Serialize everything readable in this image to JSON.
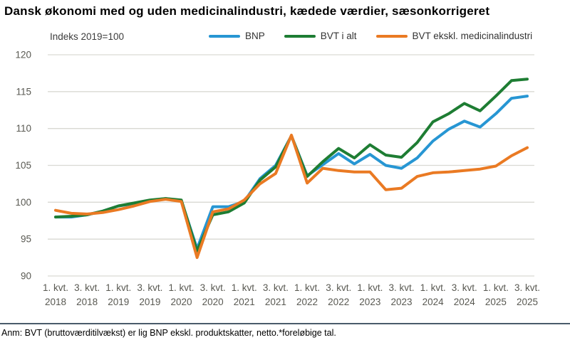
{
  "title": "Dansk økonomi med og uden medicinalindustri, kædede værdier, sæsonkorrigeret",
  "index_note": "Indeks 2019=100",
  "legend": [
    {
      "label": "BNP",
      "color": "#2796d3"
    },
    {
      "label": "BVT i alt",
      "color": "#1e7d33"
    },
    {
      "label": "BVT ekskl. medicinalindustri",
      "color": "#ea7a23"
    }
  ],
  "footnote": "Anm: BVT (bruttoværditilvækst) er lig BNP ekskl. produktskatter, netto.*foreløbige tal.",
  "colors": {
    "gridline": "#d9d9d3",
    "tick_text": "#595952",
    "divider": "#4a5b6b"
  },
  "chart_data": {
    "type": "line",
    "title": "Dansk økonomi med og uden medicinalindustri, kædede værdier, sæsonkorrigeret",
    "subtitle": "Indeks 2019=100",
    "xlabel": "",
    "ylabel": "",
    "ylim": [
      90,
      120
    ],
    "yticks": [
      90,
      95,
      100,
      105,
      110,
      115,
      120
    ],
    "grid": true,
    "legend_position": "top",
    "x_tick_every": 2,
    "categories": [
      "1. kvt. 2018",
      "2. kvt. 2018",
      "3. kvt. 2018",
      "4. kvt. 2018",
      "1. kvt. 2019",
      "2. kvt. 2019",
      "3. kvt. 2019",
      "4. kvt. 2019",
      "1. kvt. 2020",
      "2. kvt. 2020",
      "3. kvt. 2020",
      "4. kvt. 2020",
      "1. kvt. 2021",
      "2. kvt. 2021",
      "3. kvt. 2021",
      "4. kvt. 2021",
      "1. kvt. 2022",
      "2. kvt. 2022",
      "3. kvt. 2022",
      "4. kvt. 2022",
      "1. kvt. 2023",
      "2. kvt. 2023",
      "3. kvt. 2023",
      "4. kvt. 2023",
      "1. kvt. 2024",
      "2. kvt. 2024",
      "3. kvt. 2024",
      "4. kvt. 2024",
      "1. kvt. 2025",
      "2. kvt. 2025",
      "3. kvt. 2025"
    ],
    "series": [
      {
        "name": "BNP",
        "color": "#2796d3",
        "values": [
          98.0,
          98.0,
          98.3,
          98.8,
          99.5,
          99.8,
          100.2,
          100.5,
          100.2,
          93.7,
          99.4,
          99.4,
          100.1,
          103.2,
          105.0,
          109.0,
          103.6,
          105.1,
          106.6,
          105.2,
          106.5,
          105.0,
          104.6,
          106.0,
          108.3,
          109.9,
          111.0,
          110.2,
          112.0,
          114.1,
          114.4
        ]
      },
      {
        "name": "BVT i alt",
        "color": "#1e7d33",
        "values": [
          98.0,
          98.1,
          98.3,
          98.8,
          99.5,
          99.9,
          100.3,
          100.5,
          100.3,
          93.4,
          98.3,
          98.7,
          99.9,
          103.0,
          104.8,
          109.0,
          103.5,
          105.5,
          107.3,
          106.0,
          107.8,
          106.4,
          106.1,
          108.1,
          110.9,
          112.0,
          113.4,
          112.4,
          114.4,
          116.5,
          116.7
        ]
      },
      {
        "name": "BVT ekskl. medicinalindustri",
        "color": "#ea7a23",
        "values": [
          98.9,
          98.5,
          98.4,
          98.6,
          99.0,
          99.5,
          100.1,
          100.4,
          100.1,
          92.5,
          98.7,
          99.1,
          100.3,
          102.5,
          103.9,
          109.1,
          102.6,
          104.6,
          104.3,
          104.1,
          104.1,
          101.7,
          101.9,
          103.5,
          104.0,
          104.1,
          104.3,
          104.5,
          104.9,
          106.3,
          107.4
        ]
      }
    ]
  }
}
